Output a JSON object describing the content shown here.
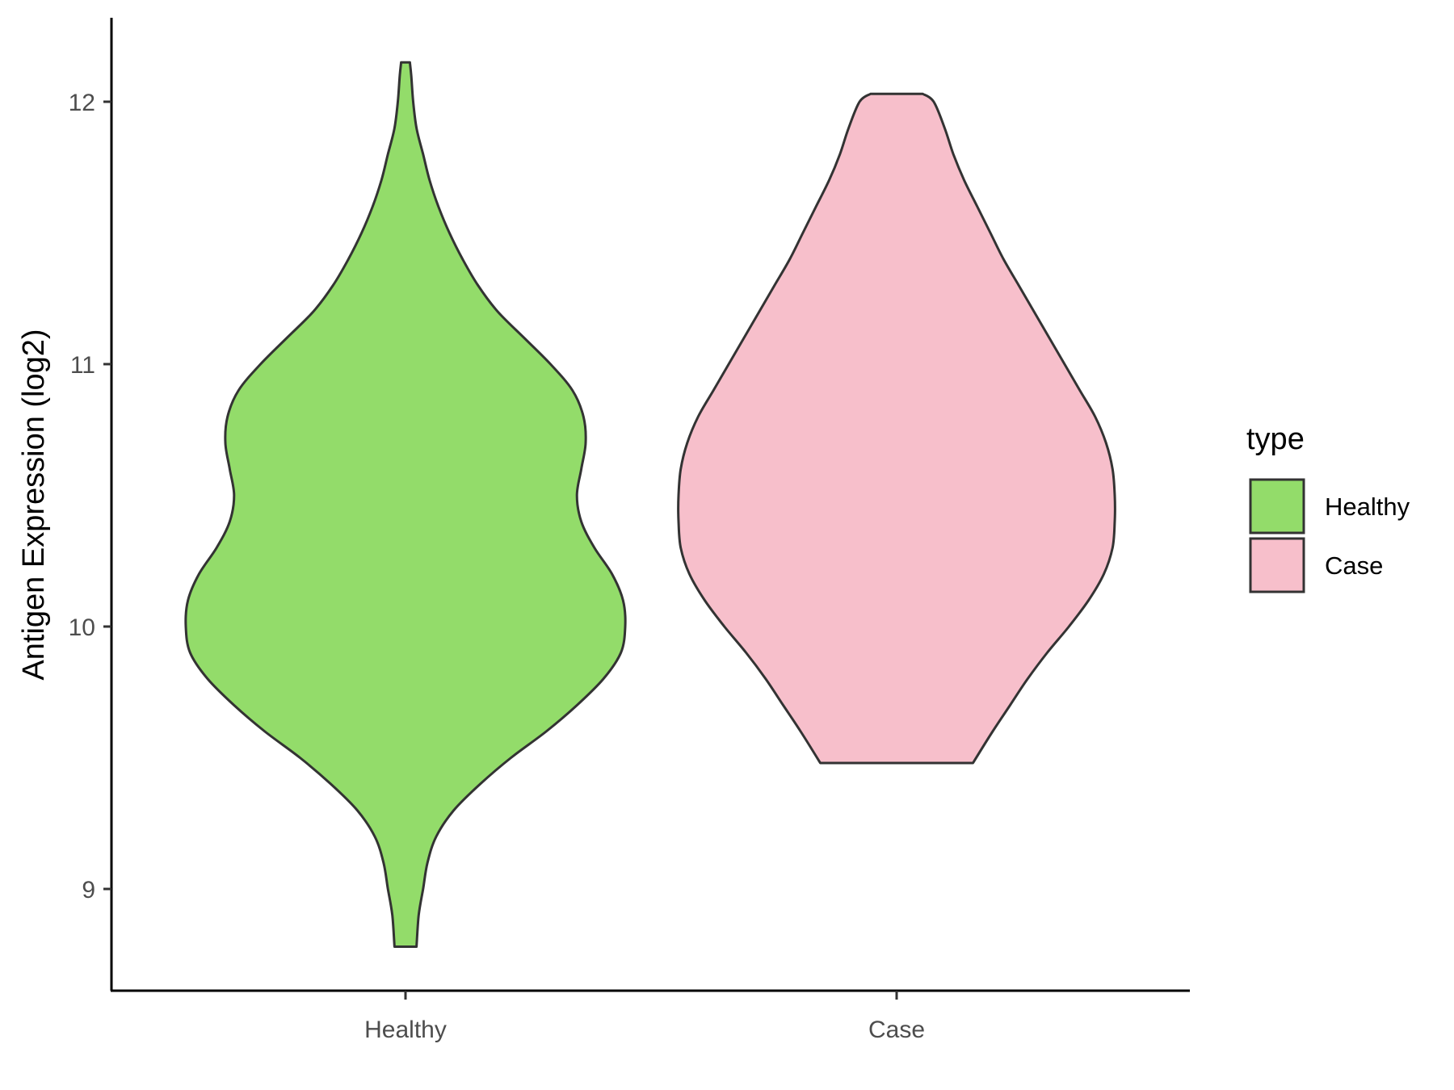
{
  "chart_data": {
    "type": "violin",
    "title": "",
    "xlabel": "",
    "ylabel": "Antigen Expression (log2)",
    "categories": [
      "Healthy",
      "Case"
    ],
    "ylim": [
      8.6,
      12.32
    ],
    "yticks": [
      9,
      10,
      11,
      12
    ],
    "grid": false,
    "legend": {
      "title": "type",
      "position": "right",
      "entries": [
        {
          "label": "Healthy",
          "color": "#93dc6a"
        },
        {
          "label": "Case",
          "color": "#f7bfcb"
        }
      ]
    },
    "series": [
      {
        "name": "Healthy",
        "color": "#93dc6a",
        "y_min": 8.78,
        "y_max": 12.15,
        "profile": [
          [
            8.78,
            0.05
          ],
          [
            8.9,
            0.06
          ],
          [
            9.0,
            0.08
          ],
          [
            9.1,
            0.1
          ],
          [
            9.2,
            0.14
          ],
          [
            9.3,
            0.22
          ],
          [
            9.4,
            0.34
          ],
          [
            9.5,
            0.48
          ],
          [
            9.6,
            0.64
          ],
          [
            9.7,
            0.78
          ],
          [
            9.8,
            0.9
          ],
          [
            9.9,
            0.98
          ],
          [
            10.0,
            1.0
          ],
          [
            10.1,
            0.99
          ],
          [
            10.2,
            0.94
          ],
          [
            10.3,
            0.86
          ],
          [
            10.4,
            0.8
          ],
          [
            10.5,
            0.78
          ],
          [
            10.6,
            0.8
          ],
          [
            10.7,
            0.82
          ],
          [
            10.8,
            0.81
          ],
          [
            10.9,
            0.76
          ],
          [
            11.0,
            0.66
          ],
          [
            11.1,
            0.54
          ],
          [
            11.2,
            0.42
          ],
          [
            11.3,
            0.33
          ],
          [
            11.4,
            0.26
          ],
          [
            11.5,
            0.2
          ],
          [
            11.6,
            0.15
          ],
          [
            11.7,
            0.11
          ],
          [
            11.8,
            0.08
          ],
          [
            11.9,
            0.05
          ],
          [
            12.0,
            0.035
          ],
          [
            12.1,
            0.026
          ],
          [
            12.15,
            0.02
          ]
        ]
      },
      {
        "name": "Case",
        "color": "#f7bfcb",
        "y_min": 9.48,
        "y_max": 12.03,
        "profile": [
          [
            9.48,
            0.35
          ],
          [
            9.6,
            0.44
          ],
          [
            9.7,
            0.52
          ],
          [
            9.8,
            0.6
          ],
          [
            9.9,
            0.69
          ],
          [
            10.0,
            0.79
          ],
          [
            10.1,
            0.88
          ],
          [
            10.2,
            0.95
          ],
          [
            10.3,
            0.99
          ],
          [
            10.4,
            1.0
          ],
          [
            10.5,
            1.0
          ],
          [
            10.6,
            0.99
          ],
          [
            10.7,
            0.96
          ],
          [
            10.8,
            0.91
          ],
          [
            10.9,
            0.84
          ],
          [
            11.0,
            0.77
          ],
          [
            11.1,
            0.7
          ],
          [
            11.2,
            0.63
          ],
          [
            11.3,
            0.56
          ],
          [
            11.4,
            0.49
          ],
          [
            11.5,
            0.43
          ],
          [
            11.6,
            0.37
          ],
          [
            11.7,
            0.31
          ],
          [
            11.8,
            0.26
          ],
          [
            11.9,
            0.22
          ],
          [
            12.0,
            0.17
          ],
          [
            12.03,
            0.12
          ]
        ]
      }
    ]
  }
}
